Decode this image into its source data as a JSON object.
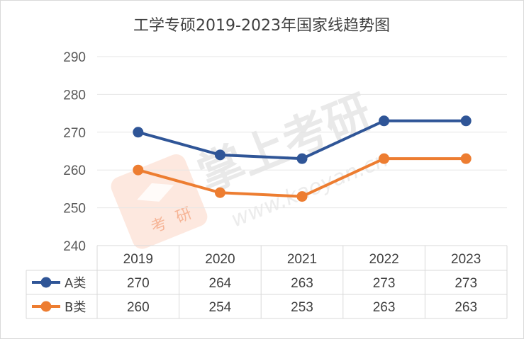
{
  "chart_data": {
    "type": "line",
    "title": "工学专硕2019-2023年国家线趋势图",
    "categories": [
      "2019",
      "2020",
      "2021",
      "2022",
      "2023"
    ],
    "series": [
      {
        "name": "A类",
        "values": [
          270,
          264,
          263,
          273,
          273
        ],
        "color": "#2f5597"
      },
      {
        "name": "B类",
        "values": [
          260,
          254,
          253,
          263,
          263
        ],
        "color": "#ed7d31"
      }
    ],
    "yticks": [
      "240",
      "250",
      "260",
      "270",
      "280",
      "290"
    ],
    "ylim": [
      240,
      290
    ],
    "grid": true,
    "legend": "data-table"
  },
  "watermark": {
    "text": "掌上考研",
    "url": "www.kaoyan.cn",
    "logo_chars": [
      "考",
      "研"
    ],
    "logo_color": "#f6a27a"
  }
}
